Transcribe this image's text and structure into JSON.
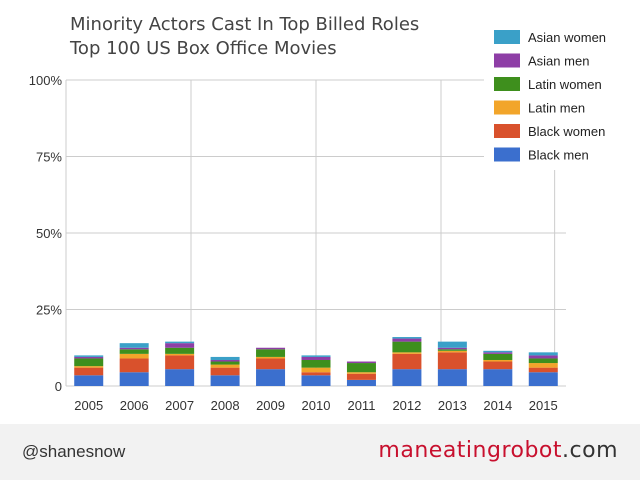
{
  "colors": {
    "black_men": "#3b6fce",
    "black_women": "#d9512c",
    "latin_men": "#f2a52a",
    "latin_women": "#3e8f1d",
    "asian_men": "#8e3ea6",
    "asian_women": "#3aa0c8",
    "grid": "#cccccc"
  },
  "footer": {
    "handle": "@shanesnow",
    "logo_brand": "maneatingrobot",
    "logo_tld": ".com"
  },
  "chart_data": {
    "type": "bar",
    "stacked": true,
    "title": [
      "Minority Actors Cast In Top Billed Roles",
      "Top 100 US Box Office Movies"
    ],
    "xlabel": "",
    "ylabel": "",
    "ylim": [
      0,
      100
    ],
    "yticks": [
      "0",
      "25%",
      "50%",
      "75%",
      "100%"
    ],
    "grid": true,
    "legend_position": "top-right",
    "categories": [
      "2005",
      "2006",
      "2007",
      "2008",
      "2009",
      "2010",
      "2011",
      "2012",
      "2013",
      "2014",
      "2015"
    ],
    "series": [
      {
        "name": "Black men",
        "key": "black_men",
        "values": [
          3.5,
          4.5,
          5.5,
          3.5,
          5.5,
          3.5,
          2,
          5.5,
          5.5,
          5.5,
          4.5
        ]
      },
      {
        "name": "Black women",
        "key": "black_women",
        "values": [
          2.5,
          4.5,
          4.5,
          2.5,
          3.5,
          1,
          2,
          5,
          5.5,
          2.5,
          1.5
        ]
      },
      {
        "name": "Latin men",
        "key": "latin_men",
        "values": [
          0.5,
          1.5,
          0.5,
          1,
          0.5,
          1.5,
          0.5,
          0.5,
          0.5,
          0.5,
          1.5
        ]
      },
      {
        "name": "Latin women",
        "key": "latin_women",
        "values": [
          2.5,
          1.5,
          2,
          1,
          2.5,
          2.5,
          3,
          3.5,
          0.5,
          2,
          1.5
        ]
      },
      {
        "name": "Asian men",
        "key": "asian_men",
        "values": [
          0.5,
          0.5,
          1.5,
          0.5,
          0.5,
          1,
          0.5,
          1,
          0.5,
          0.5,
          1
        ]
      },
      {
        "name": "Asian women",
        "key": "asian_women",
        "values": [
          0.5,
          1.5,
          0.5,
          1,
          0,
          0.5,
          0,
          0.5,
          2,
          0.5,
          1
        ]
      }
    ]
  }
}
